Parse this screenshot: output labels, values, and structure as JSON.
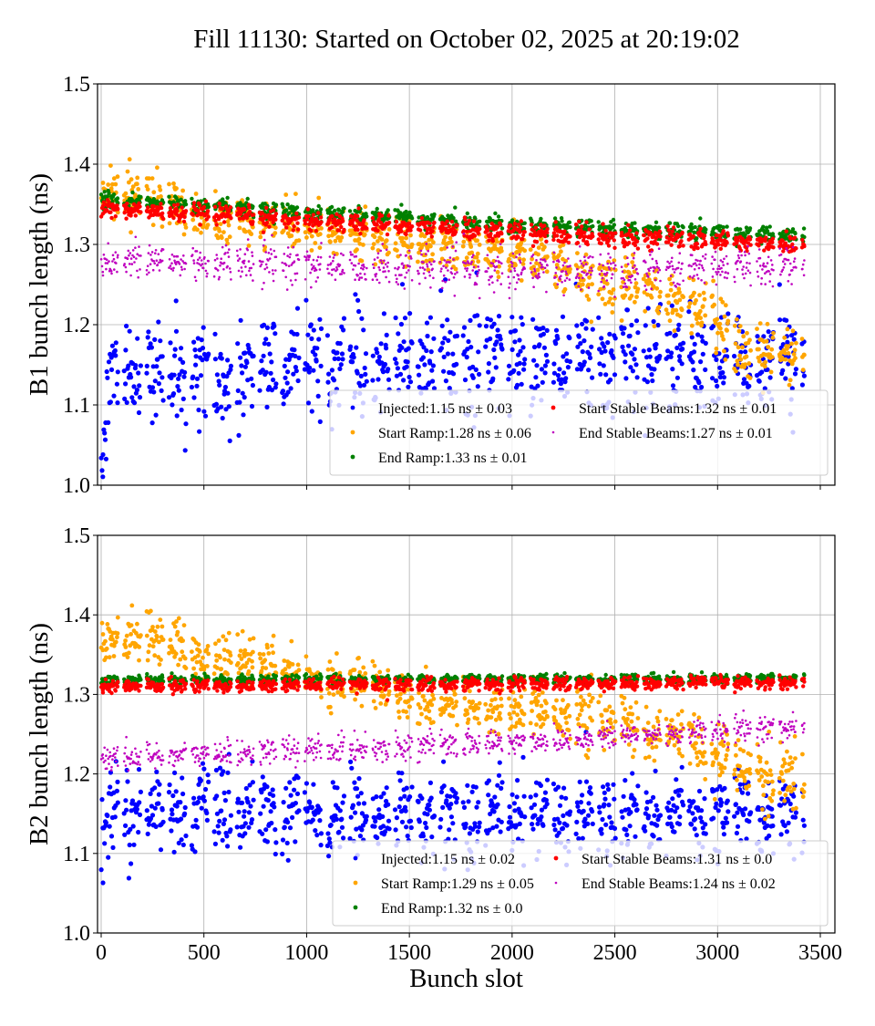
{
  "title": "Fill 11130: Started on October 02, 2025 at 20:19:02",
  "chart_data": [
    {
      "type": "scatter",
      "ylabel": "B1 bunch length (ns)",
      "xlabel": "",
      "xlim": [
        -20,
        3560
      ],
      "ylim": [
        1.0,
        1.5
      ],
      "xticks": [
        0,
        500,
        1000,
        1500,
        2000,
        2500,
        3000,
        3500
      ],
      "yticks": [
        "1.0",
        "1.1",
        "1.2",
        "1.3",
        "1.4",
        "1.5"
      ],
      "grid": true,
      "legend_position": "lower-right",
      "series": [
        {
          "name": "Injected:1.15 ns ± 0.03",
          "color": "#0000ff",
          "spread": 0.03,
          "trend": [
            [
              0,
              1.04
            ],
            [
              60,
              1.14
            ],
            [
              1000,
              1.15
            ],
            [
              2000,
              1.16
            ],
            [
              3400,
              1.15
            ]
          ]
        },
        {
          "name": "Start Ramp:1.28 ns ± 0.06",
          "color": "#ffa500",
          "spread": 0.015,
          "trend": [
            [
              0,
              1.36
            ],
            [
              300,
              1.36
            ],
            [
              500,
              1.33
            ],
            [
              1000,
              1.32
            ],
            [
              1500,
              1.3
            ],
            [
              2000,
              1.29
            ],
            [
              2400,
              1.26
            ],
            [
              2700,
              1.24
            ],
            [
              2950,
              1.22
            ],
            [
              3100,
              1.17
            ],
            [
              3420,
              1.16
            ]
          ]
        },
        {
          "name": "End Ramp:1.33 ns ± 0.01",
          "color": "#008000",
          "spread": 0.005,
          "trend": [
            [
              0,
              1.355
            ],
            [
              1000,
              1.34
            ],
            [
              2000,
              1.325
            ],
            [
              3420,
              1.31
            ]
          ]
        },
        {
          "name": "Start Stable Beams:1.32 ns ± 0.01",
          "color": "#ff0000",
          "spread": 0.006,
          "trend": [
            [
              0,
              1.345
            ],
            [
              1000,
              1.33
            ],
            [
              2000,
              1.315
            ],
            [
              3420,
              1.3
            ]
          ]
        },
        {
          "name": "End Stable Beams:1.27 ns ± 0.01",
          "color": "#bf00bf",
          "spread": 0.012,
          "trend": [
            [
              0,
              1.28
            ],
            [
              1000,
              1.275
            ],
            [
              2000,
              1.265
            ],
            [
              3420,
              1.275
            ]
          ]
        }
      ]
    },
    {
      "type": "scatter",
      "ylabel": "B2 bunch length (ns)",
      "xlabel": "Bunch slot",
      "xlim": [
        -20,
        3560
      ],
      "ylim": [
        1.0,
        1.5
      ],
      "xticks": [
        0,
        500,
        1000,
        1500,
        2000,
        2500,
        3000,
        3500
      ],
      "yticks": [
        "1.0",
        "1.1",
        "1.2",
        "1.3",
        "1.4",
        "1.5"
      ],
      "grid": true,
      "legend_position": "lower-right",
      "series": [
        {
          "name": "Injected:1.15 ns ± 0.02",
          "color": "#0000ff",
          "spread": 0.025,
          "trend": [
            [
              0,
              1.1
            ],
            [
              60,
              1.16
            ],
            [
              1000,
              1.145
            ],
            [
              2000,
              1.15
            ],
            [
              3420,
              1.15
            ]
          ]
        },
        {
          "name": "Start Ramp:1.29 ns ± 0.05",
          "color": "#ffa500",
          "spread": 0.015,
          "trend": [
            [
              0,
              1.37
            ],
            [
              350,
              1.37
            ],
            [
              500,
              1.34
            ],
            [
              700,
              1.345
            ],
            [
              1000,
              1.32
            ],
            [
              1300,
              1.315
            ],
            [
              1600,
              1.29
            ],
            [
              2000,
              1.285
            ],
            [
              2400,
              1.27
            ],
            [
              2700,
              1.25
            ],
            [
              3000,
              1.23
            ],
            [
              3200,
              1.19
            ],
            [
              3420,
              1.19
            ]
          ]
        },
        {
          "name": "End Ramp:1.32 ns ± 0.0",
          "color": "#008000",
          "spread": 0.003,
          "trend": [
            [
              0,
              1.318
            ],
            [
              3420,
              1.32
            ]
          ]
        },
        {
          "name": "Start Stable Beams:1.31 ns ± 0.0",
          "color": "#ff0000",
          "spread": 0.004,
          "trend": [
            [
              0,
              1.31
            ],
            [
              3420,
              1.315
            ]
          ]
        },
        {
          "name": "End Stable Beams:1.24 ns ± 0.02",
          "color": "#bf00bf",
          "spread": 0.008,
          "trend": [
            [
              0,
              1.22
            ],
            [
              1000,
              1.23
            ],
            [
              2000,
              1.24
            ],
            [
              3420,
              1.26
            ]
          ]
        }
      ]
    }
  ]
}
